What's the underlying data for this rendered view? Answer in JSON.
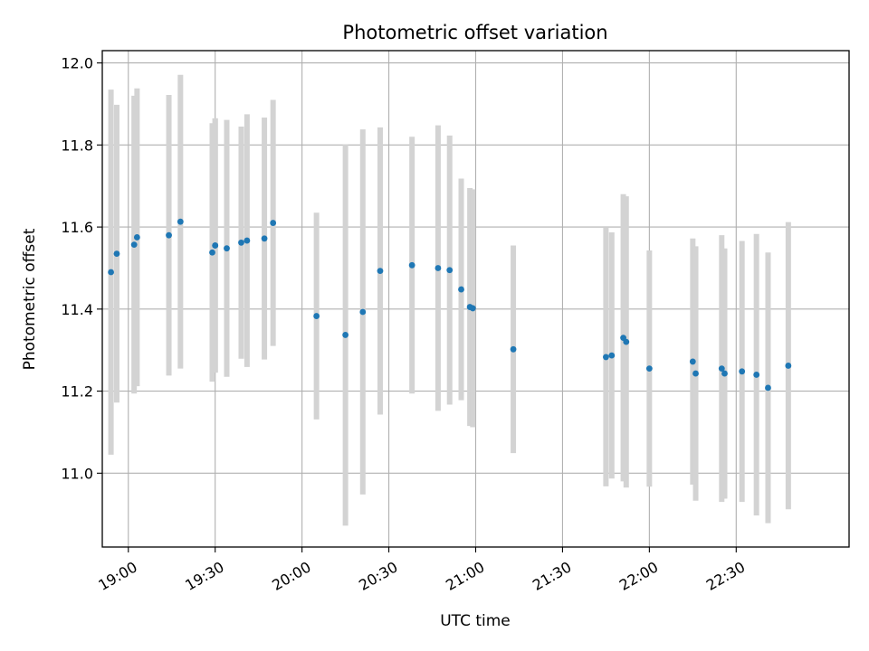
{
  "chart_data": {
    "type": "scatter",
    "title": "Photometric offset variation",
    "xlabel": "UTC time",
    "ylabel": "Photometric offset",
    "x_ticks": [
      "19:00",
      "19:30",
      "20:00",
      "20:30",
      "21:00",
      "21:30",
      "22:00",
      "22:30"
    ],
    "y_ticks": [
      "11.0",
      "11.2",
      "11.4",
      "11.6",
      "11.8",
      "12.0"
    ],
    "xlim": [
      "18:51",
      "23:09"
    ],
    "ylim": [
      10.82,
      12.03
    ],
    "grid": true,
    "colors": {
      "point": "#1f77b4",
      "errorbar": "#d3d3d3",
      "grid": "#b0b0b0"
    },
    "points": [
      {
        "t": "18:54",
        "y": 11.49,
        "err": 0.445
      },
      {
        "t": "18:56",
        "y": 11.535,
        "err": 0.363
      },
      {
        "t": "19:02",
        "y": 11.557,
        "err": 0.363
      },
      {
        "t": "19:03",
        "y": 11.575,
        "err": 0.363
      },
      {
        "t": "19:14",
        "y": 11.58,
        "err": 0.342
      },
      {
        "t": "19:18",
        "y": 11.613,
        "err": 0.358
      },
      {
        "t": "19:29",
        "y": 11.538,
        "err": 0.315
      },
      {
        "t": "19:30",
        "y": 11.555,
        "err": 0.31
      },
      {
        "t": "19:30",
        "y": 11.555,
        "err": 0.31
      },
      {
        "t": "19:34",
        "y": 11.548,
        "err": 0.313
      },
      {
        "t": "19:39",
        "y": 11.562,
        "err": 0.283
      },
      {
        "t": "19:41",
        "y": 11.567,
        "err": 0.308
      },
      {
        "t": "19:47",
        "y": 11.572,
        "err": 0.295
      },
      {
        "t": "19:50",
        "y": 11.61,
        "err": 0.3
      },
      {
        "t": "20:05",
        "y": 11.383,
        "err": 0.252
      },
      {
        "t": "20:15",
        "y": 11.337,
        "err": 0.465
      },
      {
        "t": "20:21",
        "y": 11.393,
        "err": 0.445
      },
      {
        "t": "20:27",
        "y": 11.493,
        "err": 0.35
      },
      {
        "t": "20:38",
        "y": 11.507,
        "err": 0.313
      },
      {
        "t": "20:47",
        "y": 11.5,
        "err": 0.348
      },
      {
        "t": "20:51",
        "y": 11.495,
        "err": 0.328
      },
      {
        "t": "20:55",
        "y": 11.448,
        "err": 0.27
      },
      {
        "t": "20:58",
        "y": 11.405,
        "err": 0.29
      },
      {
        "t": "20:59",
        "y": 11.402,
        "err": 0.29
      },
      {
        "t": "21:13",
        "y": 11.302,
        "err": 0.253
      },
      {
        "t": "21:45",
        "y": 11.283,
        "err": 0.315
      },
      {
        "t": "21:47",
        "y": 11.287,
        "err": 0.3
      },
      {
        "t": "21:51",
        "y": 11.33,
        "err": 0.35
      },
      {
        "t": "21:52",
        "y": 11.32,
        "err": 0.355
      },
      {
        "t": "22:00",
        "y": 11.255,
        "err": 0.288
      },
      {
        "t": "22:15",
        "y": 11.272,
        "err": 0.3
      },
      {
        "t": "22:16",
        "y": 11.243,
        "err": 0.31
      },
      {
        "t": "22:25",
        "y": 11.255,
        "err": 0.325
      },
      {
        "t": "22:26",
        "y": 11.243,
        "err": 0.305
      },
      {
        "t": "22:32",
        "y": 11.248,
        "err": 0.318
      },
      {
        "t": "22:37",
        "y": 11.24,
        "err": 0.343
      },
      {
        "t": "22:41",
        "y": 11.208,
        "err": 0.33
      },
      {
        "t": "22:48",
        "y": 11.262,
        "err": 0.35
      }
    ]
  }
}
